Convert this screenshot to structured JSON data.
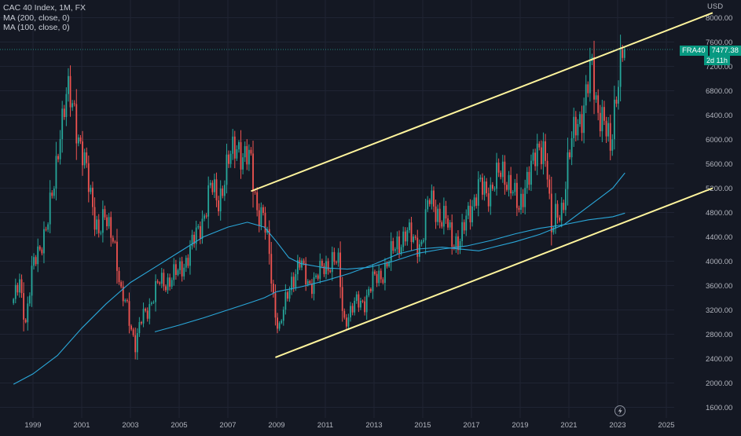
{
  "legend": {
    "title": "CAC 40 Index, 1M, FX",
    "ma200": "MA (200, close, 0)",
    "ma100": "MA (100, close, 0)"
  },
  "price_axis": {
    "currency": "USD"
  },
  "price_tag": {
    "symbol": "FRA40",
    "price": "7477.38",
    "countdown": "2d 11h"
  },
  "icons": {
    "flash": "lightning-icon"
  },
  "colors": {
    "background": "#141823",
    "up": "#26a69a",
    "down": "#ef5350",
    "channel": "#fff59d",
    "ma": "#2aa7d9",
    "grid": "#1f2433",
    "axis_text": "#b2b5be"
  },
  "chart_data": {
    "type": "candlestick",
    "title": "CAC 40 Index, 1M, FX",
    "series_names": [
      "FRA40",
      "MA (200, close, 0)",
      "MA (100, close, 0)"
    ],
    "x_ticks": [
      "1999",
      "2001",
      "2003",
      "2005",
      "2007",
      "2009",
      "2011",
      "2013",
      "2015",
      "2017",
      "2019",
      "2021",
      "2023",
      "2025"
    ],
    "y_ticks": [
      "1600.00",
      "2000.00",
      "2400.00",
      "2800.00",
      "3200.00",
      "3600.00",
      "4000.00",
      "4400.00",
      "4800.00",
      "5200.00",
      "5600.00",
      "6000.00",
      "6400.00",
      "6800.00",
      "7200.00",
      "7600.00",
      "8000.00"
    ],
    "ylim": [
      1450,
      8600
    ],
    "xlim": [
      1998.2,
      2027.3
    ],
    "last_price": 7477.38,
    "anchors": [
      [
        1998.2,
        3300
      ],
      [
        1998.45,
        3700
      ],
      [
        1998.7,
        3000
      ],
      [
        1999.0,
        3900
      ],
      [
        1999.3,
        4300
      ],
      [
        1999.6,
        4600
      ],
      [
        1999.85,
        5200
      ],
      [
        2000.1,
        6200
      ],
      [
        2000.4,
        6700
      ],
      [
        2000.7,
        6500
      ],
      [
        2000.95,
        5900
      ],
      [
        2001.3,
        5200
      ],
      [
        2001.7,
        4500
      ],
      [
        2001.95,
        4650
      ],
      [
        2002.3,
        4500
      ],
      [
        2002.6,
        3400
      ],
      [
        2002.85,
        3300
      ],
      [
        2003.2,
        2600
      ],
      [
        2003.5,
        3100
      ],
      [
        2003.8,
        3300
      ],
      [
        2004.2,
        3650
      ],
      [
        2004.6,
        3700
      ],
      [
        2004.95,
        3800
      ],
      [
        2005.3,
        4050
      ],
      [
        2005.7,
        4400
      ],
      [
        2005.95,
        4700
      ],
      [
        2006.3,
        5200
      ],
      [
        2006.6,
        5000
      ],
      [
        2006.95,
        5500
      ],
      [
        2007.4,
        6000
      ],
      [
        2007.6,
        5700
      ],
      [
        2007.95,
        5600
      ],
      [
        2008.2,
        4900
      ],
      [
        2008.45,
        4700
      ],
      [
        2008.7,
        4100
      ],
      [
        2008.9,
        3300
      ],
      [
        2009.1,
        2850
      ],
      [
        2009.3,
        3200
      ],
      [
        2009.6,
        3700
      ],
      [
        2009.95,
        3950
      ],
      [
        2010.3,
        3650
      ],
      [
        2010.6,
        3700
      ],
      [
        2010.95,
        3900
      ],
      [
        2011.3,
        4050
      ],
      [
        2011.55,
        3900
      ],
      [
        2011.75,
        3000
      ],
      [
        2011.95,
        3150
      ],
      [
        2012.3,
        3300
      ],
      [
        2012.6,
        3350
      ],
      [
        2012.95,
        3650
      ],
      [
        2013.3,
        3800
      ],
      [
        2013.6,
        4000
      ],
      [
        2013.95,
        4300
      ],
      [
        2014.3,
        4450
      ],
      [
        2014.6,
        4350
      ],
      [
        2014.95,
        4300
      ],
      [
        2015.3,
        5050
      ],
      [
        2015.55,
        4900
      ],
      [
        2015.75,
        4650
      ],
      [
        2015.95,
        4650
      ],
      [
        2016.2,
        4400
      ],
      [
        2016.55,
        4300
      ],
      [
        2016.9,
        4850
      ],
      [
        2017.3,
        5200
      ],
      [
        2017.6,
        5100
      ],
      [
        2017.95,
        5350
      ],
      [
        2018.3,
        5400
      ],
      [
        2018.6,
        5350
      ],
      [
        2018.95,
        4750
      ],
      [
        2019.3,
        5500
      ],
      [
        2019.6,
        5600
      ],
      [
        2019.95,
        5950
      ],
      [
        2020.15,
        5500
      ],
      [
        2020.25,
        4350
      ],
      [
        2020.45,
        4700
      ],
      [
        2020.75,
        4950
      ],
      [
        2020.95,
        5550
      ],
      [
        2021.3,
        6300
      ],
      [
        2021.6,
        6500
      ],
      [
        2021.95,
        7150
      ],
      [
        2022.15,
        6600
      ],
      [
        2022.35,
        6400
      ],
      [
        2022.55,
        6050
      ],
      [
        2022.7,
        5800
      ],
      [
        2022.85,
        6500
      ],
      [
        2023.0,
        7050
      ],
      [
        2023.15,
        7300
      ],
      [
        2023.25,
        7477
      ]
    ],
    "ma200_points": [
      [
        1998.2,
        1980
      ],
      [
        1999.0,
        2150
      ],
      [
        2000.0,
        2450
      ],
      [
        2001.0,
        2900
      ],
      [
        2002.0,
        3300
      ],
      [
        2003.0,
        3650
      ],
      [
        2004.0,
        3900
      ],
      [
        2005.0,
        4150
      ],
      [
        2006.0,
        4400
      ],
      [
        2007.0,
        4560
      ],
      [
        2007.8,
        4640
      ],
      [
        2008.5,
        4560
      ],
      [
        2009.0,
        4320
      ],
      [
        2009.5,
        4060
      ],
      [
        2010.0,
        3960
      ],
      [
        2011.0,
        3890
      ],
      [
        2011.9,
        3870
      ],
      [
        2012.8,
        3900
      ],
      [
        2013.8,
        4000
      ],
      [
        2014.8,
        4130
      ],
      [
        2015.8,
        4200
      ],
      [
        2016.8,
        4250
      ],
      [
        2017.8,
        4340
      ],
      [
        2018.8,
        4450
      ],
      [
        2019.8,
        4540
      ],
      [
        2020.8,
        4600
      ],
      [
        2021.8,
        4680
      ],
      [
        2022.8,
        4730
      ],
      [
        2023.3,
        4790
      ]
    ],
    "ma100_points": [
      [
        2004.0,
        2840
      ],
      [
        2005.0,
        2950
      ],
      [
        2006.0,
        3070
      ],
      [
        2007.0,
        3200
      ],
      [
        2008.0,
        3330
      ],
      [
        2008.5,
        3400
      ],
      [
        2009.0,
        3500
      ],
      [
        2010.0,
        3580
      ],
      [
        2011.0,
        3680
      ],
      [
        2012.0,
        3800
      ],
      [
        2013.0,
        3950
      ],
      [
        2014.0,
        4120
      ],
      [
        2014.8,
        4200
      ],
      [
        2015.8,
        4230
      ],
      [
        2016.8,
        4190
      ],
      [
        2017.3,
        4170
      ],
      [
        2017.8,
        4220
      ],
      [
        2018.8,
        4320
      ],
      [
        2019.8,
        4440
      ],
      [
        2020.8,
        4600
      ],
      [
        2021.8,
        4900
      ],
      [
        2022.8,
        5200
      ],
      [
        2023.3,
        5450
      ]
    ],
    "channel_upper": [
      [
        2007.95,
        5150
      ],
      [
        2026.9,
        8080
      ]
    ],
    "channel_lower": [
      [
        2008.95,
        2420
      ],
      [
        2026.9,
        5200
      ]
    ]
  }
}
